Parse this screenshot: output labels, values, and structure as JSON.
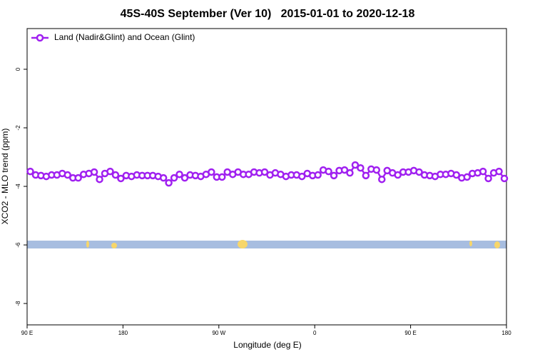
{
  "chart_data": {
    "type": "line",
    "title": "45S-40S September (Ver 10)   2015-01-01 to 2020-12-18",
    "xlabel": "Longitude (deg E)",
    "ylabel": "XCO2 - MLO trend (ppm)",
    "legend": "top-left",
    "xlim": [
      90,
      540
    ],
    "xticks": [
      {
        "value": 90,
        "label": "90 E"
      },
      180,
      {
        "value": 270,
        "label": "90 W"
      },
      {
        "value": 360,
        "label": "0"
      },
      {
        "value": 450,
        "label": "90 E"
      },
      {
        "value": 540,
        "label": "180"
      }
    ],
    "ylim": [
      -8.73,
      1.39
    ],
    "yticks": [
      0,
      -2,
      -4,
      -6,
      -8
    ],
    "x": [
      93,
      98,
      103,
      108,
      113,
      118,
      123,
      128,
      133,
      138,
      143,
      148,
      153,
      158,
      163,
      168,
      173,
      178,
      183,
      188,
      193,
      198,
      203,
      208,
      213,
      218,
      223,
      228,
      233,
      238,
      243,
      248,
      253,
      258,
      263,
      268,
      273,
      278,
      283,
      288,
      293,
      298,
      303,
      308,
      313,
      318,
      323,
      328,
      333,
      338,
      343,
      348,
      353,
      358,
      363,
      368,
      373,
      378,
      383,
      388,
      393,
      398,
      403,
      408,
      413,
      418,
      423,
      428,
      433,
      438,
      443,
      448,
      453,
      458,
      463,
      468,
      473,
      478,
      483,
      488,
      493,
      498,
      503,
      508,
      513,
      518,
      523,
      528,
      533,
      538
    ],
    "series": [
      {
        "name": "Land (Nadir&Glint) and Ocean (Glint)",
        "color": "#a020f0",
        "values": [
          -3.49,
          -3.61,
          -3.63,
          -3.66,
          -3.61,
          -3.61,
          -3.56,
          -3.61,
          -3.71,
          -3.71,
          -3.59,
          -3.56,
          -3.51,
          -3.76,
          -3.56,
          -3.49,
          -3.61,
          -3.73,
          -3.63,
          -3.66,
          -3.61,
          -3.63,
          -3.63,
          -3.63,
          -3.66,
          -3.71,
          -3.88,
          -3.71,
          -3.59,
          -3.71,
          -3.61,
          -3.63,
          -3.66,
          -3.59,
          -3.51,
          -3.68,
          -3.68,
          -3.51,
          -3.59,
          -3.51,
          -3.59,
          -3.59,
          -3.51,
          -3.54,
          -3.51,
          -3.61,
          -3.54,
          -3.59,
          -3.66,
          -3.61,
          -3.61,
          -3.66,
          -3.56,
          -3.63,
          -3.61,
          -3.44,
          -3.49,
          -3.63,
          -3.46,
          -3.44,
          -3.54,
          -3.27,
          -3.37,
          -3.63,
          -3.41,
          -3.44,
          -3.76,
          -3.46,
          -3.54,
          -3.61,
          -3.51,
          -3.51,
          -3.46,
          -3.51,
          -3.61,
          -3.63,
          -3.66,
          -3.59,
          -3.59,
          -3.56,
          -3.61,
          -3.71,
          -3.68,
          -3.56,
          -3.54,
          -3.49,
          -3.73,
          -3.54,
          -3.49,
          -3.73
        ]
      }
    ]
  }
}
